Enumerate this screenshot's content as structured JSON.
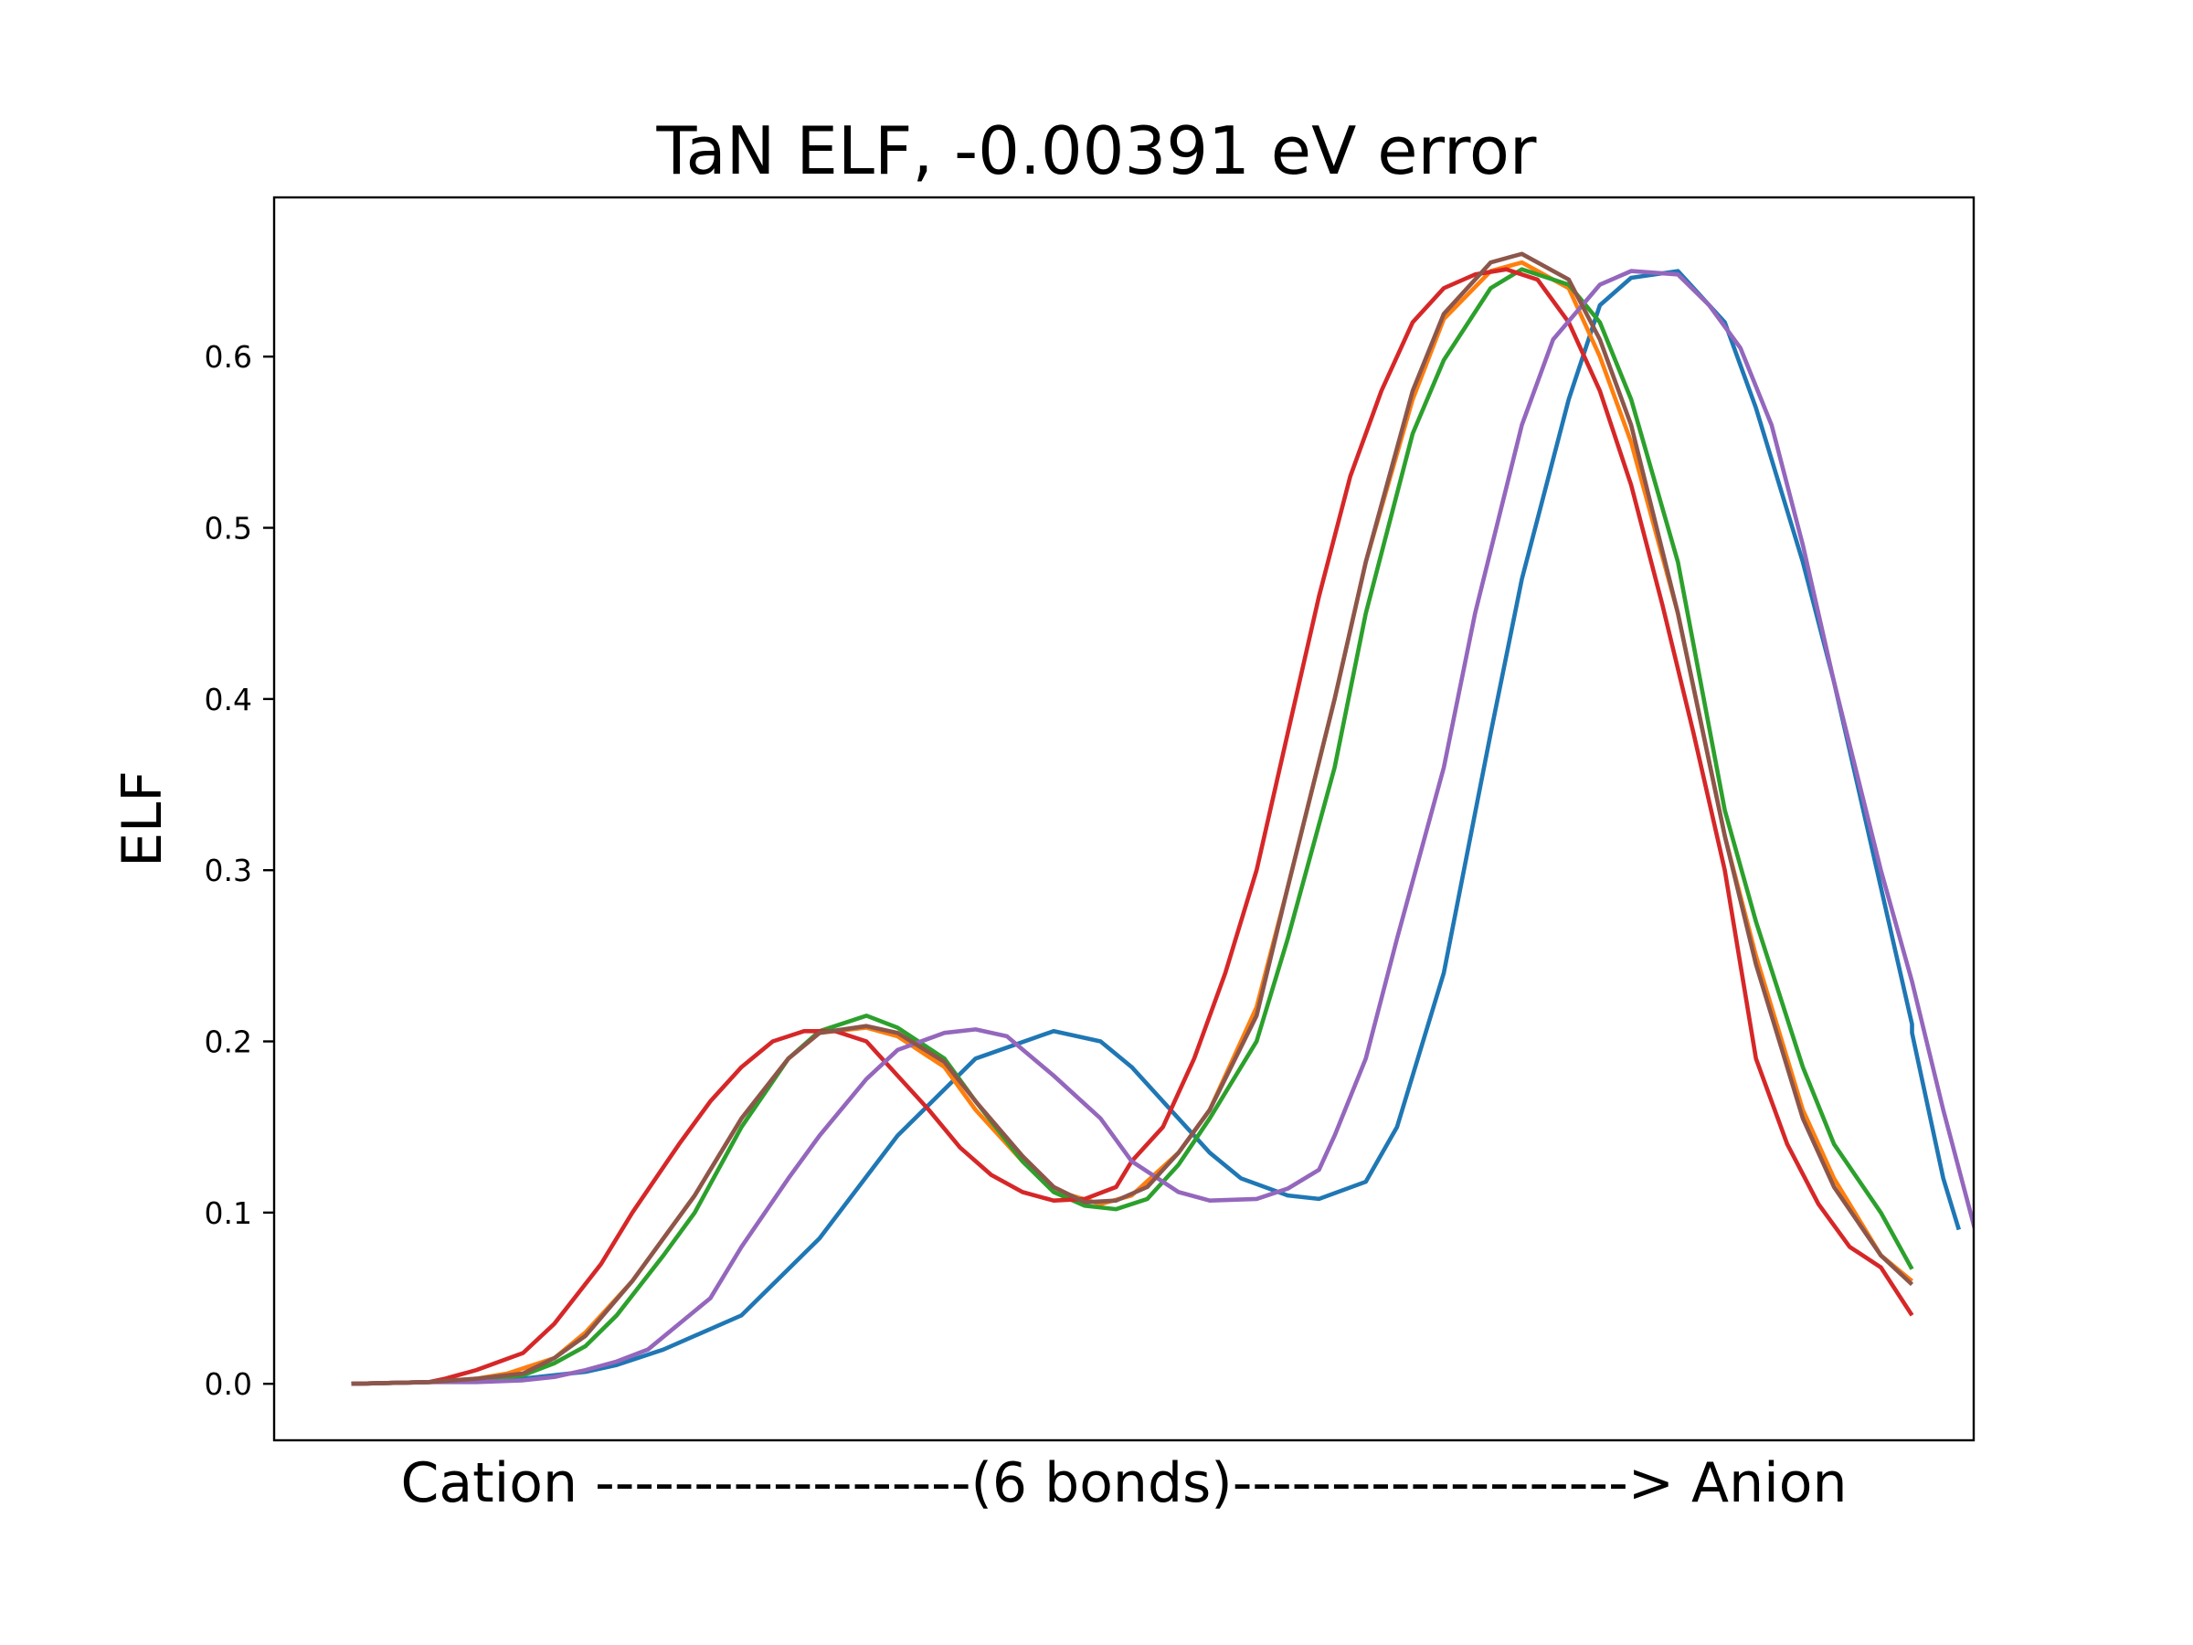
{
  "chart_data": {
    "type": "line",
    "title": "TaN ELF, -0.00391 eV error",
    "xlabel": "Cation -------------------(6 bonds)--------------------> Anion",
    "ylabel": "ELF",
    "xlim": [
      -4.95,
      103.95
    ],
    "ylim": [
      -0.033,
      0.693
    ],
    "yticks": [
      0.0,
      0.1,
      0.2,
      0.3,
      0.4,
      0.5,
      0.6
    ],
    "ytick_labels": [
      "0.0",
      "0.1",
      "0.2",
      "0.3",
      "0.4",
      "0.5",
      "0.6"
    ],
    "grid": false,
    "legend": "none",
    "series": [
      {
        "color": "#1f77b4",
        "points": [
          [
            0,
            0.0
          ],
          [
            5,
            0.001
          ],
          [
            10,
            0.002
          ],
          [
            15,
            0.007
          ],
          [
            17,
            0.011
          ],
          [
            20,
            0.02
          ],
          [
            25,
            0.04
          ],
          [
            30,
            0.085
          ],
          [
            35,
            0.145
          ],
          [
            40,
            0.19
          ],
          [
            45,
            0.206
          ],
          [
            48,
            0.2
          ],
          [
            50,
            0.185
          ],
          [
            55,
            0.135
          ],
          [
            57,
            0.12
          ],
          [
            60,
            0.11
          ],
          [
            62,
            0.108
          ],
          [
            65,
            0.118
          ],
          [
            67,
            0.15
          ],
          [
            70,
            0.24
          ],
          [
            73,
            0.38
          ],
          [
            75,
            0.47
          ],
          [
            78,
            0.575
          ],
          [
            80,
            0.63
          ],
          [
            82,
            0.646
          ],
          [
            85,
            0.65
          ],
          [
            88,
            0.62
          ],
          [
            90,
            0.57
          ],
          [
            93,
            0.48
          ],
          [
            95,
            0.41
          ],
          [
            98,
            0.29
          ],
          [
            100,
            0.21
          ],
          [
            99.99,
            0.21
          ],
          [
            100,
            0.205
          ],
          [
            102,
            0.12
          ],
          [
            103,
            0.09
          ]
        ]
      },
      {
        "color": "#ff7f0e",
        "points": [
          [
            0,
            0.0
          ],
          [
            5,
            0.001
          ],
          [
            8,
            0.003
          ],
          [
            10,
            0.006
          ],
          [
            13,
            0.015
          ],
          [
            15,
            0.03
          ],
          [
            18,
            0.06
          ],
          [
            20,
            0.085
          ],
          [
            22,
            0.11
          ],
          [
            25,
            0.155
          ],
          [
            28,
            0.19
          ],
          [
            30,
            0.205
          ],
          [
            33,
            0.208
          ],
          [
            35,
            0.203
          ],
          [
            38,
            0.185
          ],
          [
            40,
            0.16
          ],
          [
            43,
            0.13
          ],
          [
            45,
            0.113
          ],
          [
            48,
            0.105
          ],
          [
            50,
            0.11
          ],
          [
            53,
            0.135
          ],
          [
            55,
            0.16
          ],
          [
            58,
            0.22
          ],
          [
            60,
            0.29
          ],
          [
            63,
            0.4
          ],
          [
            65,
            0.48
          ],
          [
            68,
            0.575
          ],
          [
            70,
            0.622
          ],
          [
            73,
            0.65
          ],
          [
            75,
            0.655
          ],
          [
            78,
            0.64
          ],
          [
            80,
            0.6
          ],
          [
            82,
            0.55
          ],
          [
            85,
            0.45
          ],
          [
            88,
            0.32
          ],
          [
            90,
            0.25
          ],
          [
            93,
            0.16
          ],
          [
            95,
            0.12
          ],
          [
            98,
            0.075
          ],
          [
            100,
            0.06
          ]
        ]
      },
      {
        "color": "#2ca02c",
        "points": [
          [
            0,
            0.0
          ],
          [
            5,
            0.001
          ],
          [
            8,
            0.002
          ],
          [
            11,
            0.005
          ],
          [
            13,
            0.012
          ],
          [
            15,
            0.022
          ],
          [
            17,
            0.04
          ],
          [
            20,
            0.075
          ],
          [
            22,
            0.1
          ],
          [
            25,
            0.15
          ],
          [
            28,
            0.19
          ],
          [
            30,
            0.206
          ],
          [
            33,
            0.215
          ],
          [
            35,
            0.208
          ],
          [
            38,
            0.19
          ],
          [
            40,
            0.165
          ],
          [
            43,
            0.13
          ],
          [
            45,
            0.112
          ],
          [
            47,
            0.104
          ],
          [
            49,
            0.102
          ],
          [
            51,
            0.108
          ],
          [
            53,
            0.128
          ],
          [
            55,
            0.155
          ],
          [
            58,
            0.2
          ],
          [
            60,
            0.26
          ],
          [
            63,
            0.36
          ],
          [
            65,
            0.45
          ],
          [
            68,
            0.555
          ],
          [
            70,
            0.598
          ],
          [
            73,
            0.64
          ],
          [
            75,
            0.651
          ],
          [
            78,
            0.642
          ],
          [
            80,
            0.62
          ],
          [
            82,
            0.575
          ],
          [
            85,
            0.48
          ],
          [
            88,
            0.335
          ],
          [
            90,
            0.27
          ],
          [
            93,
            0.185
          ],
          [
            95,
            0.14
          ],
          [
            98,
            0.1
          ],
          [
            100,
            0.067
          ]
        ]
      },
      {
        "color": "#d62728",
        "points": [
          [
            0,
            0.0
          ],
          [
            5,
            0.001
          ],
          [
            6,
            0.003
          ],
          [
            8,
            0.008
          ],
          [
            11,
            0.018
          ],
          [
            13,
            0.035
          ],
          [
            16,
            0.07
          ],
          [
            18,
            0.1
          ],
          [
            21,
            0.14
          ],
          [
            23,
            0.165
          ],
          [
            25,
            0.185
          ],
          [
            27,
            0.2
          ],
          [
            29,
            0.206
          ],
          [
            31,
            0.206
          ],
          [
            33,
            0.2
          ],
          [
            35,
            0.18
          ],
          [
            37,
            0.16
          ],
          [
            39,
            0.138
          ],
          [
            41,
            0.122
          ],
          [
            43,
            0.112
          ],
          [
            45,
            0.107
          ],
          [
            47,
            0.108
          ],
          [
            49,
            0.115
          ],
          [
            50,
            0.13
          ],
          [
            52,
            0.15
          ],
          [
            54,
            0.19
          ],
          [
            56,
            0.24
          ],
          [
            58,
            0.3
          ],
          [
            60,
            0.38
          ],
          [
            62,
            0.46
          ],
          [
            64,
            0.53
          ],
          [
            66,
            0.58
          ],
          [
            68,
            0.62
          ],
          [
            70,
            0.64
          ],
          [
            72,
            0.648
          ],
          [
            74,
            0.651
          ],
          [
            76,
            0.645
          ],
          [
            78,
            0.62
          ],
          [
            80,
            0.58
          ],
          [
            82,
            0.525
          ],
          [
            84,
            0.455
          ],
          [
            86,
            0.38
          ],
          [
            88,
            0.3
          ],
          [
            90,
            0.19
          ],
          [
            92,
            0.14
          ],
          [
            94,
            0.105
          ],
          [
            96,
            0.08
          ],
          [
            98,
            0.068
          ],
          [
            100,
            0.04
          ]
        ]
      },
      {
        "color": "#9467bd",
        "points": [
          [
            0,
            0.0
          ],
          [
            5,
            0.001
          ],
          [
            8,
            0.001
          ],
          [
            11,
            0.002
          ],
          [
            13,
            0.004
          ],
          [
            15,
            0.008
          ],
          [
            17,
            0.013
          ],
          [
            19,
            0.02
          ],
          [
            21,
            0.035
          ],
          [
            23,
            0.05
          ],
          [
            25,
            0.08
          ],
          [
            28,
            0.12
          ],
          [
            30,
            0.145
          ],
          [
            33,
            0.178
          ],
          [
            35,
            0.195
          ],
          [
            38,
            0.205
          ],
          [
            40,
            0.207
          ],
          [
            42,
            0.203
          ],
          [
            45,
            0.18
          ],
          [
            48,
            0.155
          ],
          [
            50,
            0.13
          ],
          [
            53,
            0.112
          ],
          [
            55,
            0.107
          ],
          [
            58,
            0.108
          ],
          [
            60,
            0.114
          ],
          [
            62,
            0.125
          ],
          [
            63,
            0.145
          ],
          [
            65,
            0.19
          ],
          [
            67,
            0.26
          ],
          [
            70,
            0.36
          ],
          [
            72,
            0.45
          ],
          [
            75,
            0.56
          ],
          [
            77,
            0.61
          ],
          [
            80,
            0.642
          ],
          [
            82,
            0.65
          ],
          [
            85,
            0.648
          ],
          [
            87,
            0.63
          ],
          [
            89,
            0.605
          ],
          [
            91,
            0.56
          ],
          [
            93,
            0.49
          ],
          [
            95,
            0.41
          ],
          [
            98,
            0.3
          ],
          [
            100,
            0.235
          ],
          [
            102,
            0.16
          ],
          [
            104,
            0.091
          ]
        ]
      },
      {
        "color": "#8c564b",
        "points": [
          [
            0,
            0.0
          ],
          [
            5,
            0.001
          ],
          [
            8,
            0.003
          ],
          [
            11,
            0.006
          ],
          [
            13,
            0.015
          ],
          [
            15,
            0.028
          ],
          [
            18,
            0.06
          ],
          [
            20,
            0.085
          ],
          [
            22,
            0.11
          ],
          [
            25,
            0.155
          ],
          [
            28,
            0.19
          ],
          [
            30,
            0.205
          ],
          [
            33,
            0.209
          ],
          [
            35,
            0.205
          ],
          [
            38,
            0.188
          ],
          [
            40,
            0.165
          ],
          [
            43,
            0.133
          ],
          [
            45,
            0.115
          ],
          [
            47,
            0.106
          ],
          [
            49,
            0.107
          ],
          [
            51,
            0.115
          ],
          [
            53,
            0.135
          ],
          [
            55,
            0.16
          ],
          [
            58,
            0.215
          ],
          [
            60,
            0.29
          ],
          [
            63,
            0.4
          ],
          [
            65,
            0.48
          ],
          [
            68,
            0.58
          ],
          [
            70,
            0.625
          ],
          [
            73,
            0.655
          ],
          [
            75,
            0.66
          ],
          [
            78,
            0.645
          ],
          [
            80,
            0.61
          ],
          [
            82,
            0.56
          ],
          [
            85,
            0.45
          ],
          [
            88,
            0.32
          ],
          [
            90,
            0.245
          ],
          [
            93,
            0.155
          ],
          [
            95,
            0.115
          ],
          [
            98,
            0.075
          ],
          [
            100,
            0.058
          ]
        ]
      }
    ]
  }
}
